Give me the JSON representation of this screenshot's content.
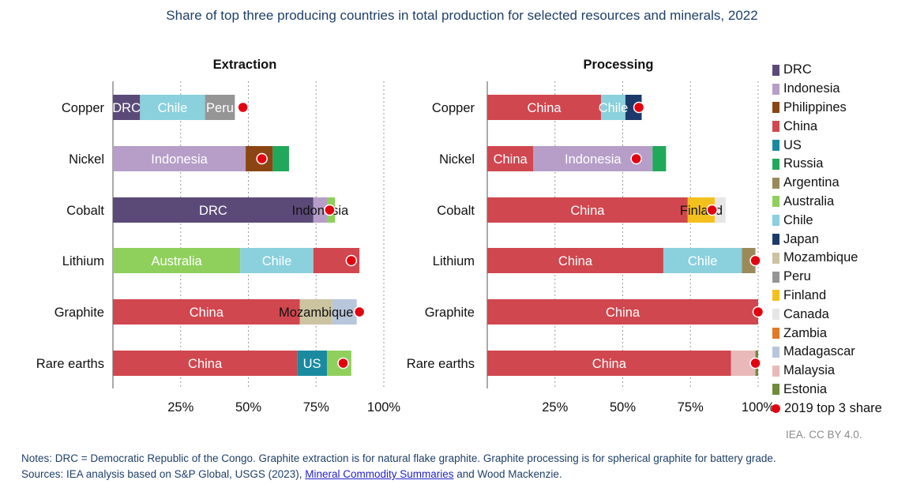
{
  "title": "Share of top three producing countries in total production for selected resources and minerals, 2022",
  "colors": {
    "DRC": "#5b4a78",
    "Indonesia": "#b69ec8",
    "Philippines": "#8b4513",
    "China": "#d0474f",
    "US": "#1a8aa0",
    "Russia": "#21a85b",
    "Argentina": "#9a8a5a",
    "Australia": "#8fd05c",
    "Chile": "#8ad0dd",
    "Japan": "#1b3a6b",
    "Mozambique": "#ccc3a0",
    "Peru": "#959595",
    "Finland": "#f4c01e",
    "Canada": "#e6e6e6",
    "Zambia": "#e07a27",
    "Madagascar": "#b8c6dc",
    "Malaysia": "#e9b9b9",
    "Estonia": "#6e8c3c",
    "marker": "#e3000f"
  },
  "legend": {
    "items": [
      "DRC",
      "Indonesia",
      "Philippines",
      "China",
      "US",
      "Russia",
      "Argentina",
      "Australia",
      "Chile",
      "Japan",
      "Mozambique",
      "Peru",
      "Finland",
      "Canada",
      "Zambia",
      "Madagascar",
      "Malaysia",
      "Estonia"
    ],
    "marker_label": "2019 top 3 share"
  },
  "chart_data": [
    {
      "type": "bar",
      "orientation": "horizontal",
      "stacked": true,
      "title": "Extraction",
      "categories": [
        "Copper",
        "Nickel",
        "Cobalt",
        "Lithium",
        "Graphite",
        "Rare earths"
      ],
      "xlim": [
        0,
        100
      ],
      "xticks": [
        "25%",
        "50%",
        "75%",
        "100%"
      ],
      "bars": [
        {
          "category": "Copper",
          "segments": [
            {
              "country": "DRC",
              "value": 10,
              "label": "DRC"
            },
            {
              "country": "Chile",
              "value": 24,
              "label": "Chile"
            },
            {
              "country": "Peru",
              "value": 11,
              "label": "Peru"
            }
          ],
          "marker_2019": 48
        },
        {
          "category": "Nickel",
          "segments": [
            {
              "country": "Indonesia",
              "value": 49,
              "label": "Indonesia"
            },
            {
              "country": "Philippines",
              "value": 10,
              "label": ""
            },
            {
              "country": "Russia",
              "value": 6,
              "label": ""
            }
          ],
          "marker_2019": 55
        },
        {
          "category": "Cobalt",
          "segments": [
            {
              "country": "DRC",
              "value": 74,
              "label": "DRC"
            },
            {
              "country": "Indonesia",
              "value": 5,
              "label": "Indonesia"
            },
            {
              "country": "Australia",
              "value": 3,
              "label": ""
            }
          ],
          "marker_2019": 80
        },
        {
          "category": "Lithium",
          "segments": [
            {
              "country": "Australia",
              "value": 47,
              "label": "Australia"
            },
            {
              "country": "Chile",
              "value": 27,
              "label": "Chile"
            },
            {
              "country": "China",
              "value": 17,
              "label": ""
            }
          ],
          "marker_2019": 88
        },
        {
          "category": "Graphite",
          "segments": [
            {
              "country": "China",
              "value": 69,
              "label": "China"
            },
            {
              "country": "Mozambique",
              "value": 12,
              "label": "Mozambique"
            },
            {
              "country": "Madagascar",
              "value": 9,
              "label": ""
            }
          ],
          "marker_2019": 91
        },
        {
          "category": "Rare earths",
          "segments": [
            {
              "country": "China",
              "value": 68,
              "label": "China"
            },
            {
              "country": "US",
              "value": 11,
              "label": "US"
            },
            {
              "country": "Australia",
              "value": 9,
              "label": ""
            }
          ],
          "marker_2019": 85
        }
      ]
    },
    {
      "type": "bar",
      "orientation": "horizontal",
      "stacked": true,
      "title": "Processing",
      "categories": [
        "Copper",
        "Nickel",
        "Cobalt",
        "Lithium",
        "Graphite",
        "Rare earths"
      ],
      "xlim": [
        0,
        100
      ],
      "xticks": [
        "25%",
        "50%",
        "75%",
        "100%"
      ],
      "bars": [
        {
          "category": "Copper",
          "segments": [
            {
              "country": "China",
              "value": 42,
              "label": "China"
            },
            {
              "country": "Chile",
              "value": 9,
              "label": "Chile"
            },
            {
              "country": "Japan",
              "value": 6,
              "label": ""
            }
          ],
          "marker_2019": 56
        },
        {
          "category": "Nickel",
          "segments": [
            {
              "country": "China",
              "value": 17,
              "label": "China"
            },
            {
              "country": "Indonesia",
              "value": 44,
              "label": "Indonesia"
            },
            {
              "country": "Russia",
              "value": 5,
              "label": ""
            }
          ],
          "marker_2019": 55
        },
        {
          "category": "Cobalt",
          "segments": [
            {
              "country": "China",
              "value": 74,
              "label": "China"
            },
            {
              "country": "Finland",
              "value": 10,
              "label": "Finland"
            },
            {
              "country": "Canada",
              "value": 4,
              "label": ""
            }
          ],
          "marker_2019": 83
        },
        {
          "category": "Lithium",
          "segments": [
            {
              "country": "China",
              "value": 65,
              "label": "China"
            },
            {
              "country": "Chile",
              "value": 29,
              "label": "Chile"
            },
            {
              "country": "Argentina",
              "value": 5,
              "label": ""
            }
          ],
          "marker_2019": 99
        },
        {
          "category": "Graphite",
          "segments": [
            {
              "country": "China",
              "value": 100,
              "label": "China"
            }
          ],
          "marker_2019": 100
        },
        {
          "category": "Rare earths",
          "segments": [
            {
              "country": "China",
              "value": 90,
              "label": "China"
            },
            {
              "country": "Malaysia",
              "value": 9,
              "label": ""
            },
            {
              "country": "Estonia",
              "value": 1,
              "label": ""
            }
          ],
          "marker_2019": 99
        }
      ]
    }
  ],
  "credit": "IEA. CC BY 4.0.",
  "notes": {
    "line1": "Notes: DRC = Democratic Republic of the Congo. Graphite extraction is for natural flake graphite. Graphite processing is for spherical graphite for battery grade.",
    "line2_prefix": "Sources: IEA analysis based on S&P Global, USGS (2023), ",
    "line2_link": "Mineral Commodity Summaries",
    "line2_suffix": " and Wood Mackenzie."
  }
}
